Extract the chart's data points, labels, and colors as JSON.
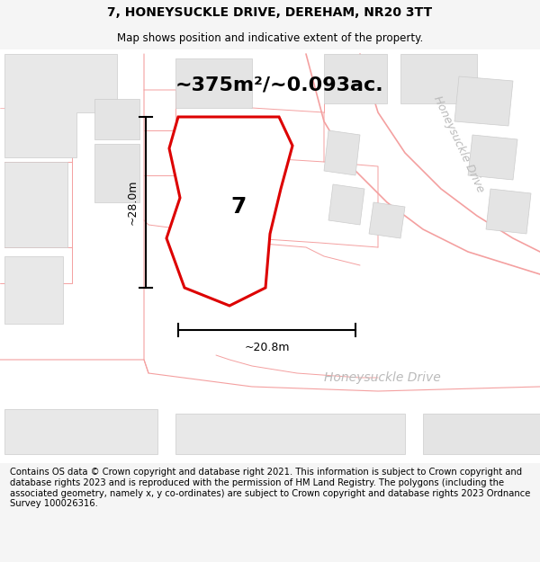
{
  "title": "7, HONEYSUCKLE DRIVE, DEREHAM, NR20 3TT",
  "subtitle": "Map shows position and indicative extent of the property.",
  "footer": "Contains OS data © Crown copyright and database right 2021. This information is subject to Crown copyright and database rights 2023 and is reproduced with the permission of HM Land Registry. The polygons (including the associated geometry, namely x, y co-ordinates) are subject to Crown copyright and database rights 2023 Ordnance Survey 100026316.",
  "area_text": "~375m²/~0.093ac.",
  "dim_width": "~20.8m",
  "dim_height": "~28.0m",
  "street_label_horiz": "Honeysuckle Drive",
  "street_label_diag": "Honeysuckle Drive",
  "number_label": "7",
  "bg_color": "#f5f5f5",
  "map_bg": "#ffffff",
  "plot_color": "#dd0000",
  "road_color": "#f4a0a0",
  "building_color": "#e0e0e0",
  "building_edge": "#cccccc",
  "street_text_color": "#bbbbbb",
  "title_fontsize": 10,
  "subtitle_fontsize": 8.5,
  "footer_fontsize": 7.2,
  "area_fontsize": 16,
  "dim_fontsize": 9,
  "number_fontsize": 18,
  "street_fontsize": 10,
  "street_diag_fontsize": 9
}
